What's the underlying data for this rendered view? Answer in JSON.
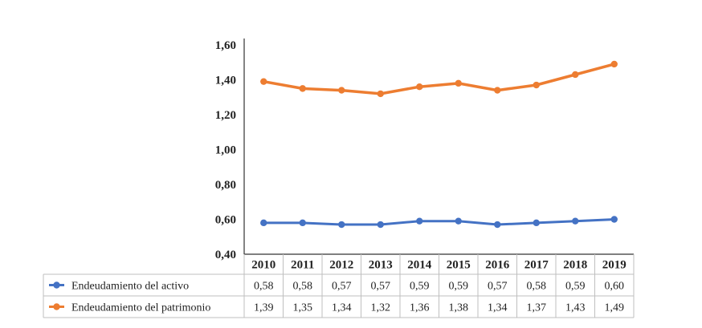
{
  "chart_data": {
    "type": "line",
    "categories": [
      "2010",
      "2011",
      "2012",
      "2013",
      "2014",
      "2015",
      "2016",
      "2017",
      "2018",
      "2019"
    ],
    "series": [
      {
        "name": "Endeudamiento del activo",
        "color": "#4472C4",
        "values": [
          0.58,
          0.58,
          0.57,
          0.57,
          0.59,
          0.59,
          0.57,
          0.58,
          0.59,
          0.6
        ],
        "labels": [
          "0,58",
          "0,58",
          "0,57",
          "0,57",
          "0,59",
          "0,59",
          "0,57",
          "0,58",
          "0,59",
          "0,60"
        ]
      },
      {
        "name": "Endeudamiento del patrimonio",
        "color": "#ED7D31",
        "values": [
          1.39,
          1.35,
          1.34,
          1.32,
          1.36,
          1.38,
          1.34,
          1.37,
          1.43,
          1.49
        ],
        "labels": [
          "1,39",
          "1,35",
          "1,34",
          "1,32",
          "1,36",
          "1,38",
          "1,34",
          "1,37",
          "1,43",
          "1,49"
        ]
      }
    ],
    "ylim": [
      0.4,
      1.6
    ],
    "yticks": [
      "0,40",
      "0,60",
      "0,80",
      "1,00",
      "1,20",
      "1,40",
      "1,60"
    ],
    "grid": false,
    "legend": "data table below chart"
  }
}
